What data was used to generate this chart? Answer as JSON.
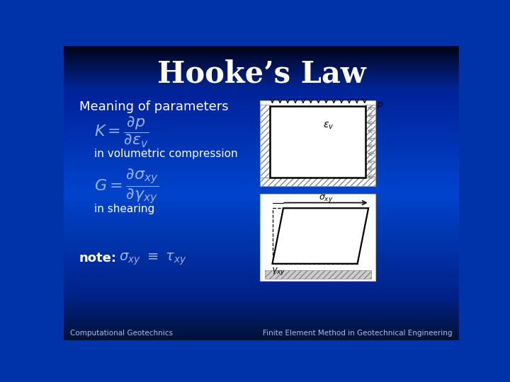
{
  "title": "Hooke’s Law",
  "title_color": "#ffffff",
  "text_color": "#ffffff",
  "formula_color": "#8899cc",
  "footer_left": "Computational Geotechnics",
  "footer_right": "Finite Element Method in Geotechnical Engineering",
  "meaning_text": "Meaning of parameters",
  "compression_text": "in volumetric compression",
  "shearing_text": "in shearing",
  "note_text": "note:",
  "bg_dark": "#000820",
  "bg_mid": "#0033bb",
  "bg_bright": "#0044cc"
}
